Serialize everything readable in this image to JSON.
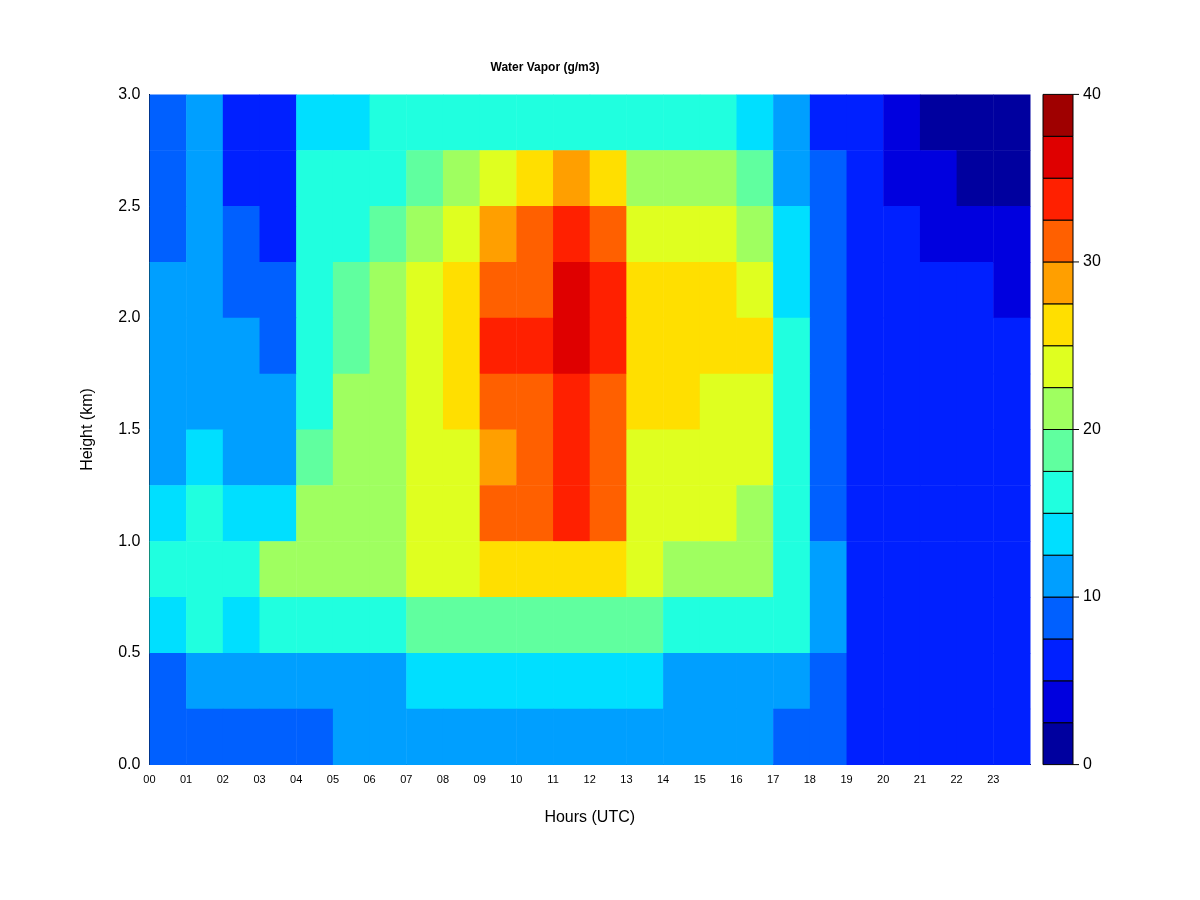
{
  "chart_data": {
    "type": "heatmap",
    "title": "Water Vapor (g/m3)",
    "xlabel": "Hours (UTC)",
    "ylabel": "Height (km)",
    "x": [
      0.5,
      1.5,
      2.5,
      3.5,
      4.5,
      5.5,
      6.5,
      7.5,
      8.5,
      9.5,
      10.5,
      11.5,
      12.5,
      13.5,
      14.5,
      15.5,
      16.5,
      17.5,
      18.5,
      19.5,
      20.5,
      21.5,
      22.5,
      23.5
    ],
    "y": [
      2.875,
      2.625,
      2.375,
      2.125,
      1.875,
      1.625,
      1.375,
      1.125,
      0.875,
      0.625,
      0.375,
      0.125
    ],
    "xlim": [
      0,
      24
    ],
    "ylim": [
      0,
      3
    ],
    "xticks": [
      {
        "value": 0,
        "label": "00"
      },
      {
        "value": 1,
        "label": "01"
      },
      {
        "value": 2,
        "label": "02"
      },
      {
        "value": 3,
        "label": "03"
      },
      {
        "value": 4,
        "label": "04"
      },
      {
        "value": 5,
        "label": "05"
      },
      {
        "value": 6,
        "label": "06"
      },
      {
        "value": 7,
        "label": "07"
      },
      {
        "value": 8,
        "label": "08"
      },
      {
        "value": 9,
        "label": "09"
      },
      {
        "value": 10,
        "label": "10"
      },
      {
        "value": 11,
        "label": "11"
      },
      {
        "value": 12,
        "label": "12"
      },
      {
        "value": 13,
        "label": "13"
      },
      {
        "value": 14,
        "label": "14"
      },
      {
        "value": 15,
        "label": "15"
      },
      {
        "value": 16,
        "label": "16"
      },
      {
        "value": 17,
        "label": "17"
      },
      {
        "value": 18,
        "label": "18"
      },
      {
        "value": 19,
        "label": "19"
      },
      {
        "value": 20,
        "label": "20"
      },
      {
        "value": 21,
        "label": "21"
      },
      {
        "value": 22,
        "label": "22"
      },
      {
        "value": 23,
        "label": "23"
      }
    ],
    "yticks": [
      {
        "value": 0,
        "label": "0.0"
      },
      {
        "value": 0.5,
        "label": "0.5"
      },
      {
        "value": 1,
        "label": "1.0"
      },
      {
        "value": 1.5,
        "label": "1.5"
      },
      {
        "value": 2,
        "label": "2.0"
      },
      {
        "value": 2.5,
        "label": "2.5"
      },
      {
        "value": 3,
        "label": "3.0"
      }
    ],
    "clim": [
      0,
      40
    ],
    "cticks": [
      0,
      10,
      20,
      30,
      40
    ],
    "cells": [
      [
        8,
        10,
        6,
        6,
        13,
        14,
        15,
        16,
        17,
        17,
        16,
        17,
        16,
        15,
        15,
        15,
        14,
        10,
        7,
        6,
        3,
        2,
        1,
        1
      ],
      [
        9,
        10,
        7,
        6,
        15,
        16,
        17,
        19,
        21,
        24,
        26,
        28,
        26,
        21,
        20,
        20,
        19,
        12,
        8,
        6,
        4,
        3,
        2,
        2
      ],
      [
        9,
        10,
        8,
        7,
        15,
        17,
        18,
        21,
        23,
        28,
        30,
        33,
        31,
        24,
        23,
        23,
        22,
        13,
        8,
        6,
        5,
        4,
        3,
        3
      ],
      [
        10,
        11,
        9,
        8,
        16,
        18,
        20,
        23,
        25,
        31,
        32,
        35,
        33,
        26,
        26,
        25,
        24,
        14,
        9,
        6,
        5,
        5,
        5,
        4
      ],
      [
        10,
        11,
        10,
        9,
        16,
        19,
        21,
        24,
        26,
        33,
        33,
        36,
        34,
        27,
        27,
        26,
        25,
        15,
        9,
        6,
        6,
        6,
        6,
        6
      ],
      [
        11,
        12,
        11,
        10,
        17,
        20,
        21,
        23,
        25,
        31,
        32,
        34,
        32,
        25,
        25,
        24,
        24,
        16,
        9,
        6,
        6,
        6,
        6,
        6
      ],
      [
        12,
        13,
        12,
        11,
        18,
        20,
        22,
        23,
        24,
        29,
        31,
        33,
        31,
        24,
        24,
        23,
        23,
        16,
        9,
        6,
        6,
        6,
        6,
        6
      ],
      [
        13,
        15,
        13,
        13,
        20,
        21,
        22,
        23,
        24,
        30,
        32,
        34,
        31,
        24,
        24,
        23,
        22,
        17,
        9,
        6,
        6,
        6,
        6,
        6
      ],
      [
        15,
        17,
        16,
        20,
        21,
        22,
        22,
        23,
        23,
        25,
        26,
        27,
        25,
        23,
        22,
        22,
        21,
        17,
        10,
        6,
        6,
        6,
        6,
        6
      ],
      [
        14,
        15,
        14,
        17,
        17,
        17,
        17,
        18,
        18,
        19,
        18,
        19,
        19,
        18,
        17,
        17,
        17,
        15,
        10,
        6,
        6,
        6,
        6,
        6
      ],
      [
        9,
        10,
        10,
        10,
        10,
        12,
        12,
        13,
        13,
        14,
        13,
        14,
        14,
        13,
        12,
        12,
        12,
        12,
        9,
        6,
        6,
        6,
        6,
        6
      ],
      [
        8,
        8,
        8,
        8,
        9,
        10,
        10,
        11,
        11,
        12,
        11,
        12,
        12,
        11,
        10,
        10,
        10,
        9,
        8,
        6,
        6,
        6,
        5,
        5
      ]
    ]
  }
}
